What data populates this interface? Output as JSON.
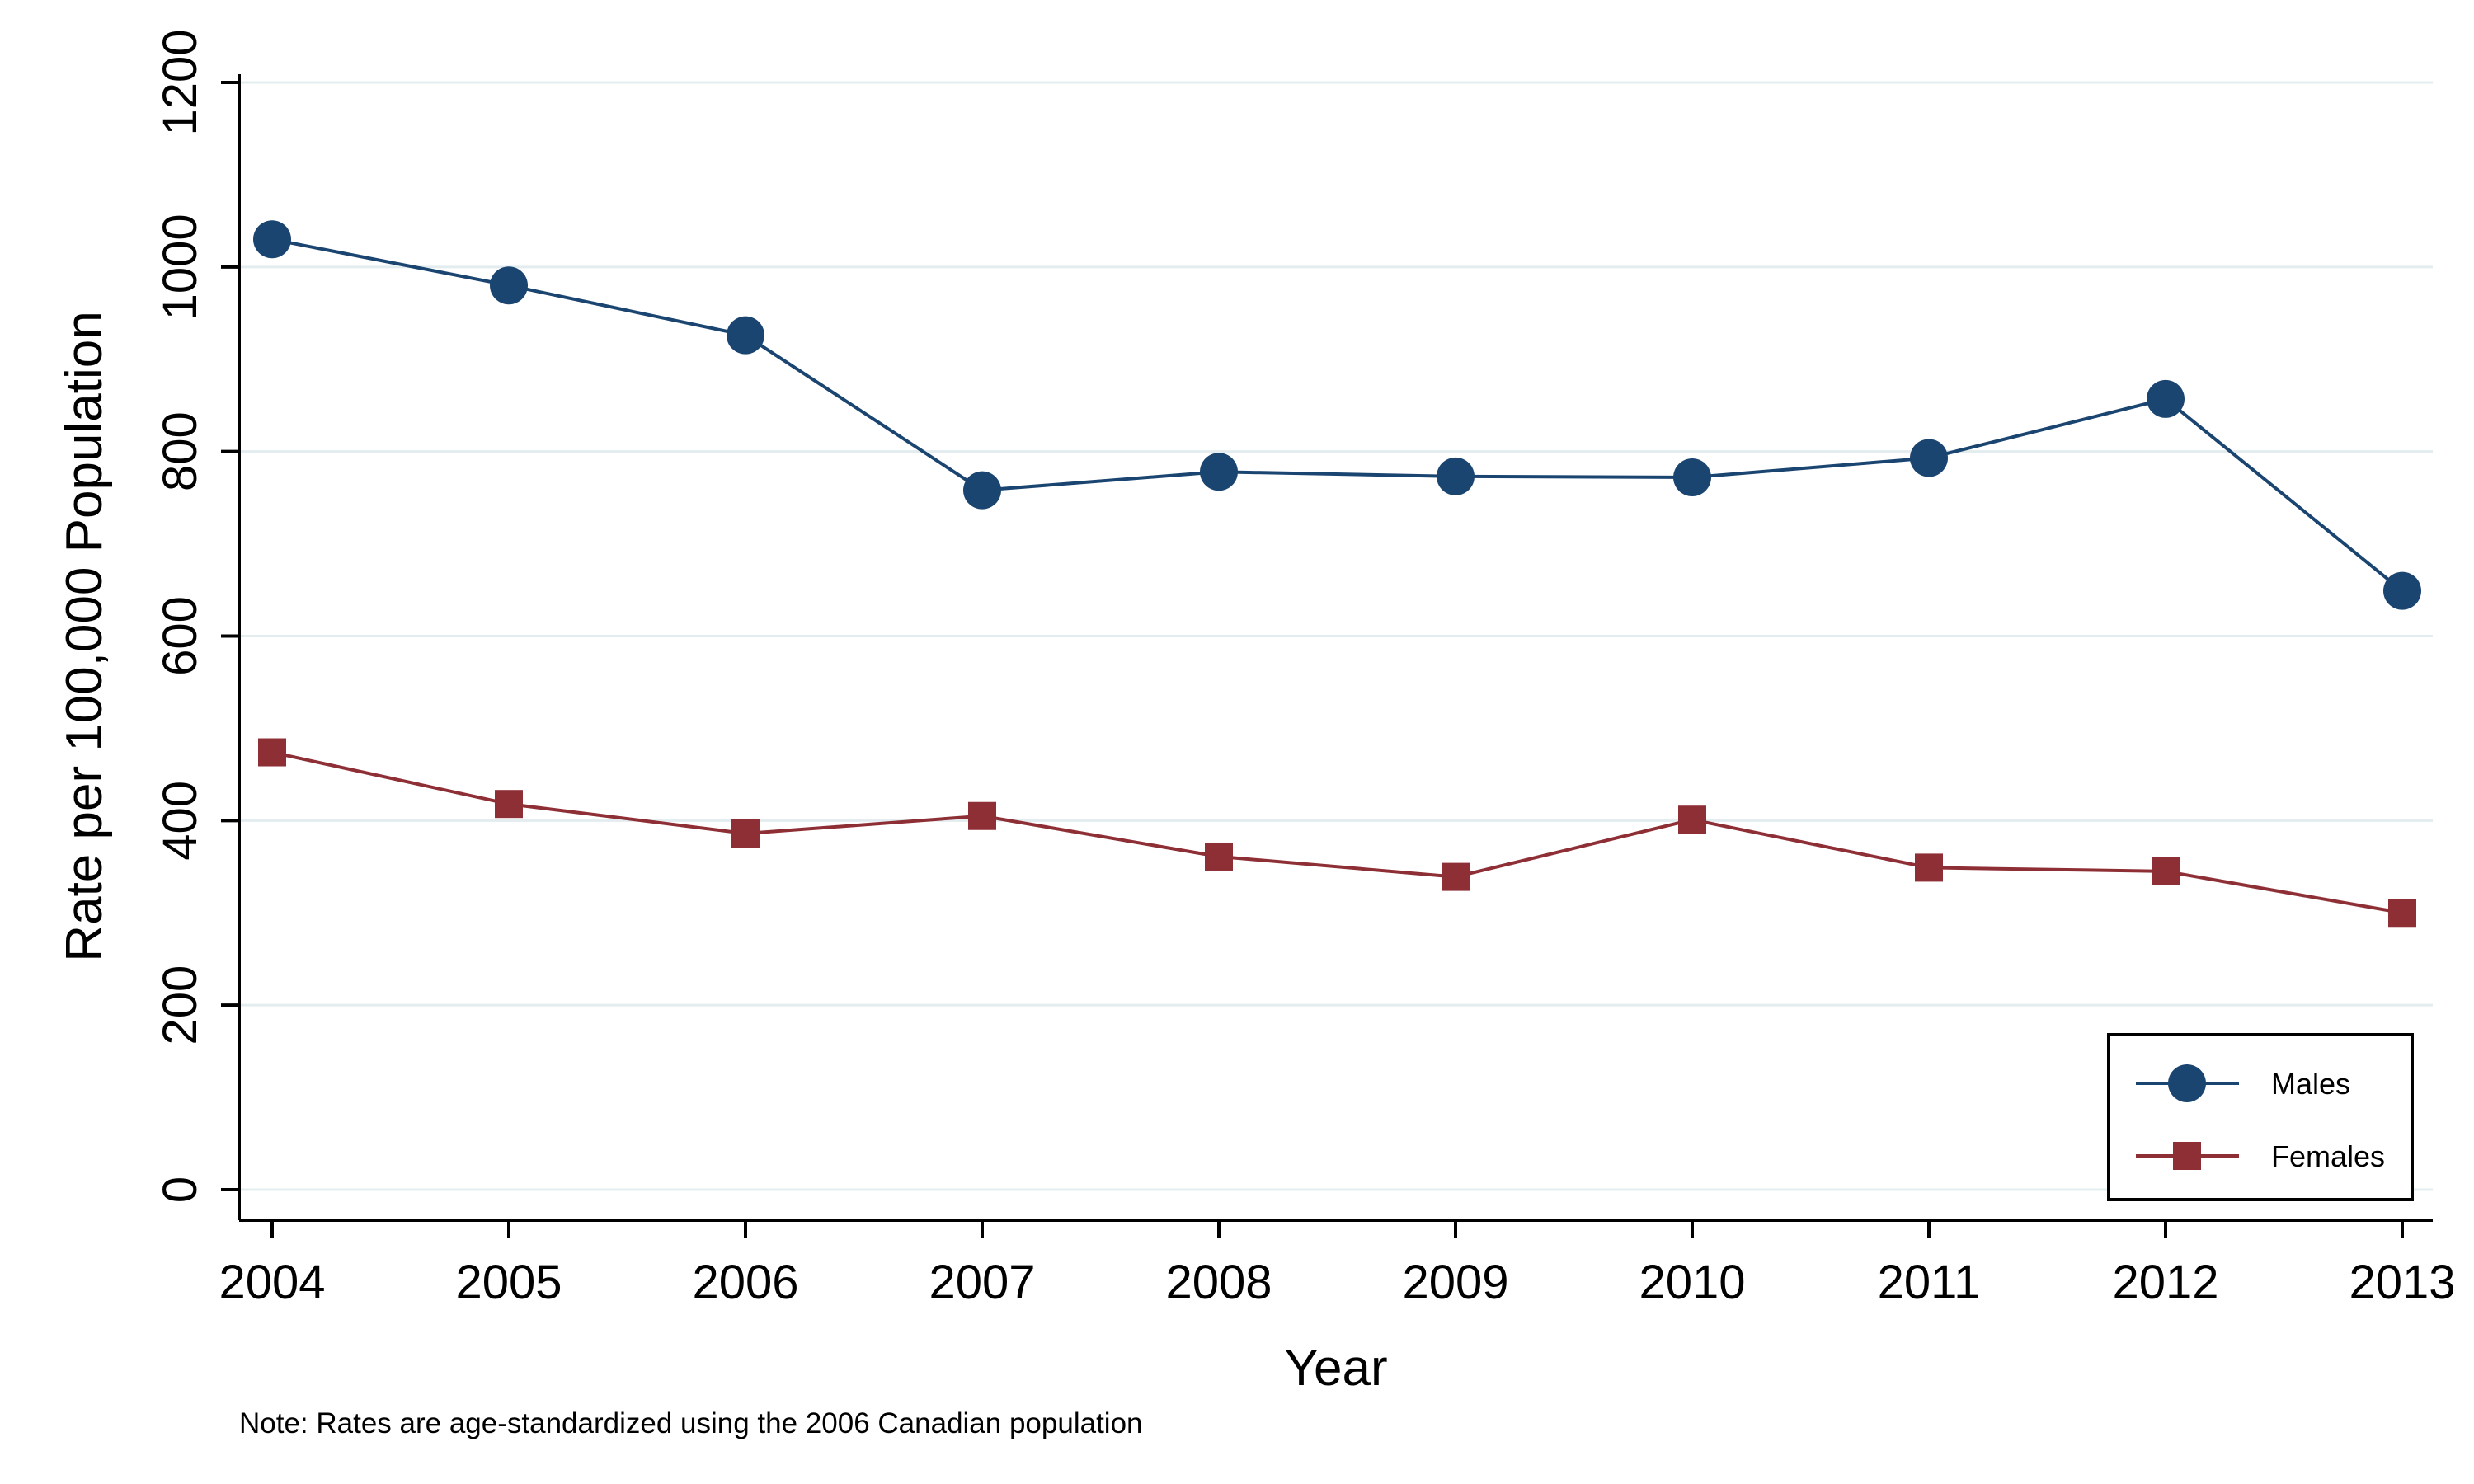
{
  "chart_data": {
    "type": "line",
    "title": "",
    "xlabel": "Year",
    "ylabel": "Rate per 100,000 Population",
    "ylim": [
      0,
      1200
    ],
    "yticks": [
      0,
      200,
      400,
      600,
      800,
      1000,
      1200
    ],
    "x": [
      2004,
      2005,
      2006,
      2007,
      2008,
      2009,
      2010,
      2011,
      2012,
      2013
    ],
    "x_tick_labels": [
      "2004",
      "2005",
      "2006",
      "2007",
      "2008",
      "2009",
      "2010",
      "2011",
      "2012",
      "2013"
    ],
    "grid": true,
    "legend_position": "bottom-right",
    "series": [
      {
        "name": "Males",
        "marker": "circle",
        "color": "#1b4571",
        "values": [
          1030,
          980,
          926,
          758,
          778,
          773,
          772,
          793,
          857,
          649
        ]
      },
      {
        "name": "Females",
        "marker": "square",
        "color": "#8e2f36",
        "values": [
          474,
          418,
          386,
          405,
          361,
          339,
          401,
          349,
          345,
          300
        ]
      }
    ],
    "note": "Note: Rates are age-standardized using the 2006 Canadian population"
  }
}
